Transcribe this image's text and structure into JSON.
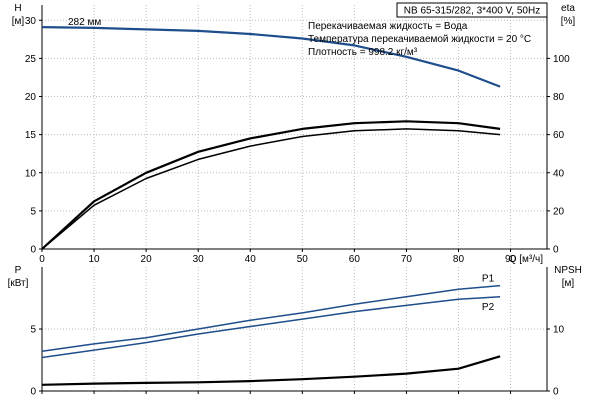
{
  "chart_data": [
    {
      "type": "line",
      "model_label": "NB 65-315/282, 3*400 V, 50Hz",
      "annotations": [
        "Перекачиваемая жидкость = Вода",
        "Температура перекачиваемой жидкости = 20 °C",
        "Плотность = 998.2 кг/м³"
      ],
      "ylabel_left": "H",
      "ylabel_left_unit": "[м]",
      "ylabel_right": "eta",
      "ylabel_right_unit": "[%]",
      "xlabel": "Q [м³/ч]",
      "xlim": [
        0,
        97
      ],
      "ylim_left": [
        0,
        32
      ],
      "ylim_right": [
        0,
        128
      ],
      "x_ticks": [
        0,
        10,
        20,
        30,
        40,
        50,
        60,
        70,
        80,
        90
      ],
      "y_ticks_left": [
        0,
        5,
        10,
        15,
        20,
        25,
        30
      ],
      "y_ticks_right": [
        0,
        20,
        40,
        60,
        80,
        100
      ],
      "grid": true,
      "series": [
        {
          "name": "",
          "axis": "left",
          "color": "#1f4e8c",
          "label": "282 мм",
          "x": [
            0,
            10,
            20,
            30,
            40,
            50,
            60,
            70,
            80,
            88
          ],
          "y": [
            29.1,
            29.0,
            28.8,
            28.6,
            28.2,
            27.6,
            26.7,
            25.2,
            23.4,
            21.3
          ]
        },
        {
          "name": "",
          "axis": "right",
          "color": "#000000",
          "x": [
            0,
            10,
            20,
            30,
            40,
            50,
            60,
            70,
            80,
            88
          ],
          "y": [
            0,
            25,
            40,
            51,
            58,
            63,
            66,
            67,
            66,
            63
          ]
        },
        {
          "name": "",
          "axis": "right",
          "color": "#000000",
          "x": [
            0,
            10,
            20,
            30,
            40,
            50,
            60,
            70,
            80,
            88
          ],
          "y": [
            0,
            23,
            37,
            47,
            54,
            59,
            62,
            63,
            62,
            60
          ]
        }
      ]
    },
    {
      "type": "line",
      "ylabel_left": "P",
      "ylabel_left_unit": "[кВт]",
      "ylabel_right": "NPSH",
      "ylabel_right_unit": "[м]",
      "xlim": [
        0,
        97
      ],
      "ylim_left": [
        0,
        10
      ],
      "ylim_right": [
        0,
        20
      ],
      "x_ticks": [
        0,
        10,
        20,
        30,
        40,
        50,
        60,
        70,
        80,
        90
      ],
      "y_ticks_left": [
        0,
        5
      ],
      "y_ticks_right": [
        0,
        10
      ],
      "grid": true,
      "series": [
        {
          "name": "P1",
          "axis": "left",
          "color": "#1f4e8c",
          "x": [
            0,
            10,
            20,
            30,
            40,
            50,
            60,
            70,
            80,
            88
          ],
          "y": [
            3.2,
            3.8,
            4.3,
            5.0,
            5.7,
            6.3,
            7.0,
            7.6,
            8.2,
            8.5
          ]
        },
        {
          "name": "P2",
          "axis": "left",
          "color": "#1f4e8c",
          "x": [
            0,
            10,
            20,
            30,
            40,
            50,
            60,
            70,
            80,
            88
          ],
          "y": [
            2.7,
            3.3,
            3.9,
            4.6,
            5.2,
            5.8,
            6.4,
            6.9,
            7.4,
            7.6
          ]
        },
        {
          "name": "",
          "axis": "right",
          "color": "#000000",
          "x": [
            0,
            10,
            20,
            30,
            40,
            50,
            60,
            70,
            80,
            88
          ],
          "y": [
            1.0,
            1.2,
            1.3,
            1.4,
            1.6,
            1.9,
            2.3,
            2.8,
            3.6,
            5.6
          ]
        }
      ]
    }
  ]
}
